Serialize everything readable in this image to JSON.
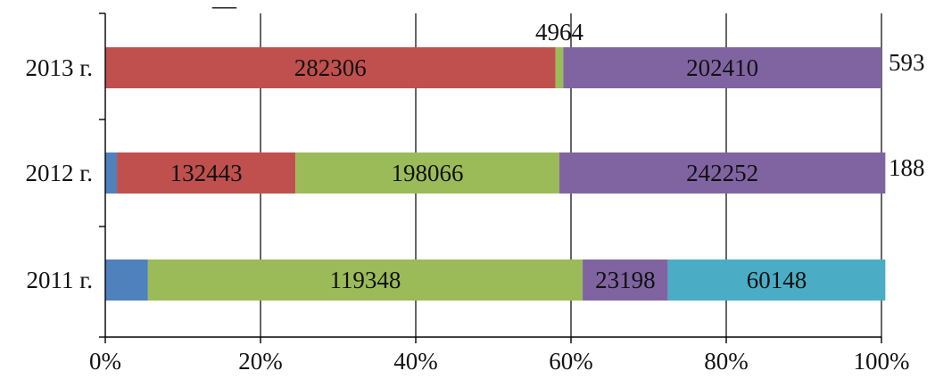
{
  "chart_data": {
    "type": "bar",
    "orientation": "horizontal",
    "stacked": "percent",
    "title": "",
    "xlabel": "",
    "ylabel": "",
    "xlim": [
      0,
      100
    ],
    "x_ticks": [
      "0%",
      "20%",
      "40%",
      "60%",
      "80%",
      "100%"
    ],
    "grid": "vertical",
    "legend": "none",
    "categories": [
      "2013 г.",
      "2012 г.",
      "2011 г."
    ],
    "colors": [
      "#4f81bd",
      "#c0504d",
      "#9bbb59",
      "#8064a2",
      "#4bacc6"
    ],
    "series_percent": [
      [
        0,
        58,
        1,
        41,
        0
      ],
      [
        1.5,
        23,
        34,
        42,
        0
      ],
      [
        5.5,
        0,
        56,
        11,
        28
      ]
    ],
    "data_labels": [
      [
        "",
        "282306",
        "4964",
        "202410",
        "593"
      ],
      [
        "",
        "132443",
        "198066",
        "242252",
        "188"
      ],
      [
        "",
        "",
        "119348",
        "23198",
        "60148"
      ]
    ],
    "title_fragment": "__"
  }
}
